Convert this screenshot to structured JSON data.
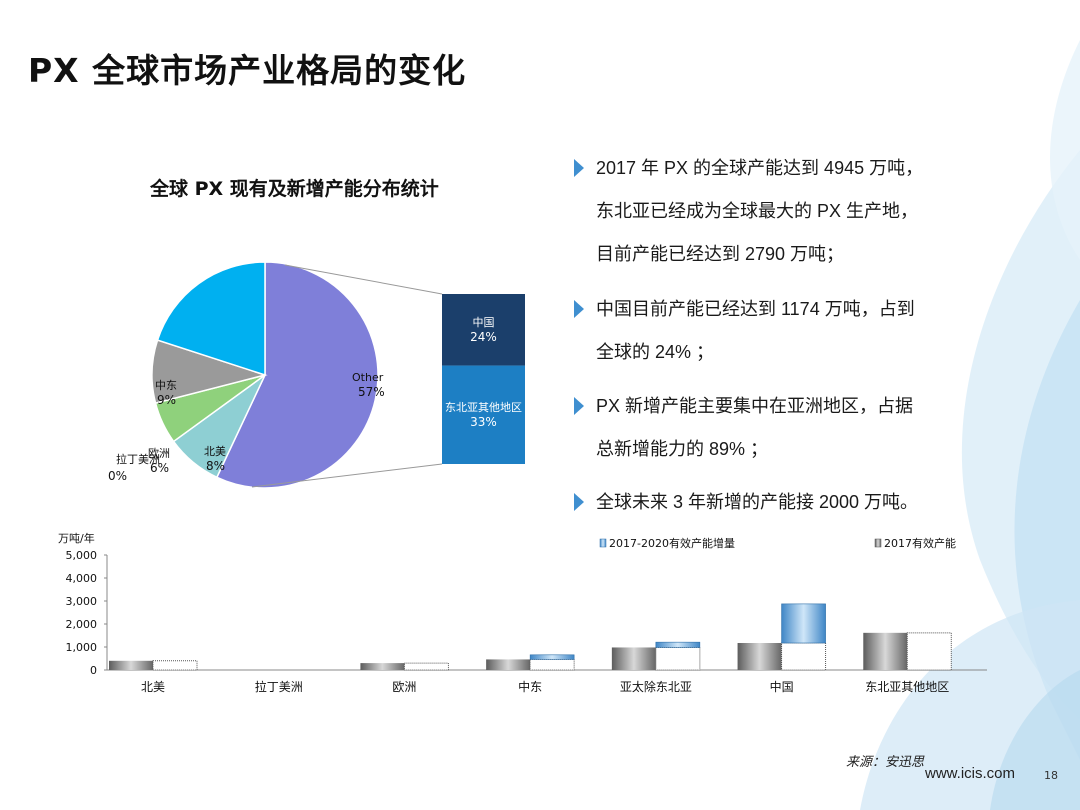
{
  "slide": {
    "title": "PX 全球市场产业格局的变化",
    "source": "来源：安迅思",
    "website": "www.icis.com",
    "page_number": "18"
  },
  "bullets": [
    {
      "lines": [
        "2017 年 PX 的全球产能达到 4945 万吨，",
        "东北亚已经成为全球最大的 PX 生产地，",
        "目前产能已经达到 2790 万吨；"
      ]
    },
    {
      "lines": [
        "中国目前产能已经达到  1174 万吨，占到",
        "全球的 24% ；"
      ]
    },
    {
      "lines": [
        "PX 新增产能主要集中在亚洲地区，占据",
        "总新增能力的 89% ；"
      ]
    },
    {
      "lines": [
        "全球未来 3 年新增的产能接 2000 万吨。"
      ]
    }
  ],
  "colors": {
    "accent": "#3f8fd0",
    "other": "#7f7fd9",
    "north_america": "#8ecfd3",
    "europe": "#8fd17c",
    "latam": "#ffffff",
    "mideast": "#9a9a9a",
    "asia_other": "#00b0f0",
    "china": "#1b3f6b",
    "ne_asia_other": "#1d7fc4"
  },
  "chart_data": [
    {
      "type": "pie",
      "title": "全球 PX 现有及新增产能分布统计",
      "slices": [
        {
          "label": "Other",
          "value": 57,
          "display": "57%",
          "color_key": "other"
        },
        {
          "label": "北美",
          "value": 8,
          "display": "8%",
          "color_key": "north_america"
        },
        {
          "label": "欧洲",
          "value": 6,
          "display": "6%",
          "color_key": "europe"
        },
        {
          "label": "拉丁美洲",
          "value": 0,
          "display": "0%",
          "color_key": "latam"
        },
        {
          "label": "中东",
          "value": 9,
          "display": "9%",
          "color_key": "mideast"
        },
        {
          "label": "亚太除东北亚",
          "value": 20,
          "display": "",
          "color_key": "asia_other"
        }
      ],
      "breakout": [
        {
          "label": "中国",
          "value": 24,
          "display": "24%",
          "color_key": "china"
        },
        {
          "label": "东北亚其他地区",
          "value": 33,
          "display": "33%",
          "color_key": "ne_asia_other"
        }
      ]
    },
    {
      "type": "bar",
      "ylabel": "万吨/年",
      "ylim": [
        0,
        5000
      ],
      "yticks": [
        0,
        1000,
        2000,
        3000,
        4000,
        5000
      ],
      "ytick_labels": [
        "0",
        "1,000",
        "2,000",
        "3,000",
        "4,000",
        "5,000"
      ],
      "categories": [
        "北美",
        "拉丁美洲",
        "欧洲",
        "中东",
        "亚太除东北亚",
        "中国",
        "东北亚其他地区"
      ],
      "series": [
        {
          "name": "2017有效产能",
          "values": [
            400,
            0,
            300,
            460,
            980,
            1174,
            1616
          ]
        },
        {
          "name": "2017-2020有效产能增量",
          "values": [
            0,
            0,
            0,
            200,
            230,
            1700,
            0
          ]
        }
      ],
      "legend": [
        "2017-2020有效产能增量",
        "2017有效产能"
      ]
    }
  ]
}
